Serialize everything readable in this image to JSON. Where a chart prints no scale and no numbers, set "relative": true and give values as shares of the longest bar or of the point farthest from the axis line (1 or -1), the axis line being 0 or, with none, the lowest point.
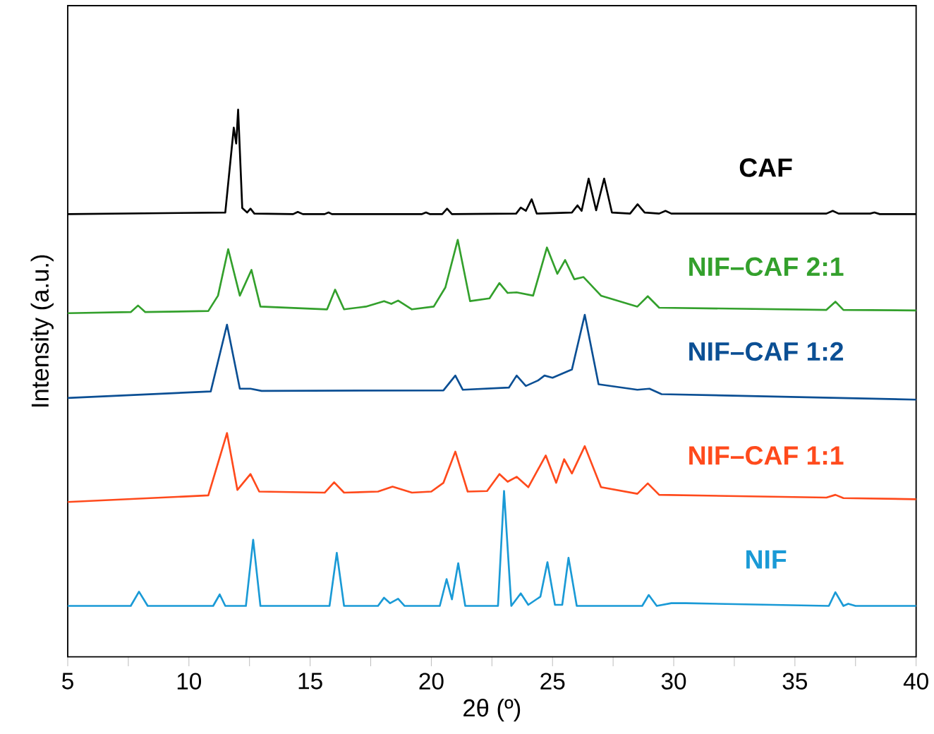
{
  "chart_data": {
    "type": "line",
    "xlabel": "2θ (º)",
    "ylabel": "Intensity (a.u.)",
    "relative": true,
    "xlim": [
      5,
      40
    ],
    "xticks": [
      5,
      10,
      15,
      20,
      25,
      30,
      35,
      40
    ],
    "grid": false,
    "legend": false,
    "marker": "none",
    "line_style": "solid",
    "series": [
      {
        "name": "CAF",
        "color": "#000000",
        "x": [
          5,
          11.5,
          11.85,
          11.95,
          12.03,
          12.2,
          12.4,
          12.54,
          12.7,
          14.3,
          14.49,
          14.7,
          15.6,
          15.76,
          15.9,
          19.6,
          19.78,
          19.95,
          20.45,
          20.65,
          20.85,
          23.5,
          23.69,
          23.9,
          24.14,
          24.35,
          25.8,
          26.03,
          26.2,
          26.49,
          26.8,
          27.13,
          27.45,
          28.2,
          28.51,
          28.8,
          29.4,
          29.66,
          29.9,
          36.3,
          36.56,
          36.8,
          38.1,
          38.28,
          38.5,
          40
        ],
        "values": [
          0.809,
          0.812,
          0.967,
          0.938,
          1.0,
          0.82,
          0.812,
          0.819,
          0.81,
          0.809,
          0.813,
          0.809,
          0.809,
          0.812,
          0.809,
          0.809,
          0.812,
          0.809,
          0.809,
          0.819,
          0.809,
          0.81,
          0.821,
          0.815,
          0.836,
          0.81,
          0.812,
          0.825,
          0.815,
          0.874,
          0.816,
          0.874,
          0.812,
          0.81,
          0.827,
          0.812,
          0.81,
          0.815,
          0.81,
          0.81,
          0.815,
          0.81,
          0.81,
          0.812,
          0.809,
          0.809
        ]
      },
      {
        "name": "NIF–CAF 2:1",
        "color": "#33a02c",
        "x": [
          5,
          7.6,
          7.9,
          8.2,
          10.8,
          11.2,
          11.62,
          12.1,
          12.58,
          12.95,
          15.7,
          16.03,
          16.4,
          17.3,
          18.05,
          18.35,
          18.63,
          19.2,
          20.1,
          20.58,
          21.09,
          21.6,
          22.4,
          22.81,
          23.15,
          23.52,
          24.2,
          24.77,
          25.2,
          25.52,
          25.9,
          26.28,
          27.0,
          28.5,
          28.93,
          29.4,
          36.3,
          36.67,
          37.0,
          40
        ],
        "values": [
          0.628,
          0.63,
          0.642,
          0.63,
          0.632,
          0.66,
          0.745,
          0.66,
          0.707,
          0.64,
          0.635,
          0.671,
          0.635,
          0.64,
          0.65,
          0.645,
          0.651,
          0.635,
          0.64,
          0.675,
          0.762,
          0.65,
          0.655,
          0.683,
          0.665,
          0.666,
          0.66,
          0.748,
          0.7,
          0.725,
          0.69,
          0.694,
          0.66,
          0.64,
          0.659,
          0.638,
          0.634,
          0.649,
          0.634,
          0.633
        ]
      },
      {
        "name": "NIF–CAF 1:2",
        "color": "#0b4f94",
        "x": [
          5,
          10.9,
          11.57,
          12.1,
          12.54,
          13.0,
          20.5,
          20.99,
          21.3,
          23.2,
          23.52,
          23.9,
          24.4,
          24.67,
          25.0,
          25.8,
          26.33,
          26.9,
          28.5,
          29.0,
          29.5,
          40
        ],
        "values": [
          0.473,
          0.485,
          0.607,
          0.49,
          0.49,
          0.486,
          0.487,
          0.514,
          0.488,
          0.492,
          0.514,
          0.495,
          0.505,
          0.514,
          0.51,
          0.525,
          0.625,
          0.498,
          0.488,
          0.49,
          0.48,
          0.47
        ]
      },
      {
        "name": "NIF–CAF 1:1",
        "color": "#ff4a1c",
        "x": [
          5,
          10.8,
          11.57,
          12.0,
          12.54,
          12.9,
          15.6,
          15.99,
          16.4,
          17.8,
          18.4,
          19.2,
          20.0,
          20.5,
          20.99,
          21.5,
          22.3,
          22.81,
          23.15,
          23.52,
          24.0,
          24.72,
          25.15,
          25.48,
          25.8,
          26.33,
          27.0,
          28.5,
          28.93,
          29.4,
          36.3,
          36.67,
          37.0,
          40
        ],
        "values": [
          0.283,
          0.295,
          0.409,
          0.305,
          0.334,
          0.302,
          0.3,
          0.319,
          0.3,
          0.302,
          0.311,
          0.3,
          0.302,
          0.318,
          0.375,
          0.302,
          0.303,
          0.334,
          0.32,
          0.329,
          0.31,
          0.368,
          0.318,
          0.361,
          0.335,
          0.385,
          0.31,
          0.298,
          0.317,
          0.296,
          0.291,
          0.296,
          0.29,
          0.288
        ]
      },
      {
        "name": "NIF",
        "color": "#1a9ad6",
        "x": [
          5,
          7.6,
          7.94,
          8.3,
          11.0,
          11.27,
          11.5,
          12.35,
          12.65,
          12.95,
          15.8,
          16.1,
          16.4,
          17.8,
          18.05,
          18.3,
          18.63,
          18.9,
          20.35,
          20.63,
          20.85,
          21.11,
          21.4,
          22.75,
          23.0,
          23.3,
          23.69,
          24.0,
          24.5,
          24.79,
          25.1,
          25.4,
          25.66,
          26.0,
          28.7,
          28.97,
          29.3,
          29.9,
          30.5,
          36.4,
          36.67,
          37.0,
          37.2,
          37.5,
          40
        ],
        "values": [
          0.093,
          0.093,
          0.119,
          0.093,
          0.093,
          0.114,
          0.093,
          0.093,
          0.214,
          0.093,
          0.093,
          0.19,
          0.093,
          0.093,
          0.108,
          0.098,
          0.106,
          0.093,
          0.093,
          0.142,
          0.105,
          0.171,
          0.093,
          0.093,
          0.303,
          0.093,
          0.116,
          0.095,
          0.11,
          0.173,
          0.095,
          0.095,
          0.181,
          0.093,
          0.093,
          0.113,
          0.093,
          0.098,
          0.098,
          0.093,
          0.118,
          0.093,
          0.097,
          0.093,
          0.093
        ]
      }
    ]
  }
}
